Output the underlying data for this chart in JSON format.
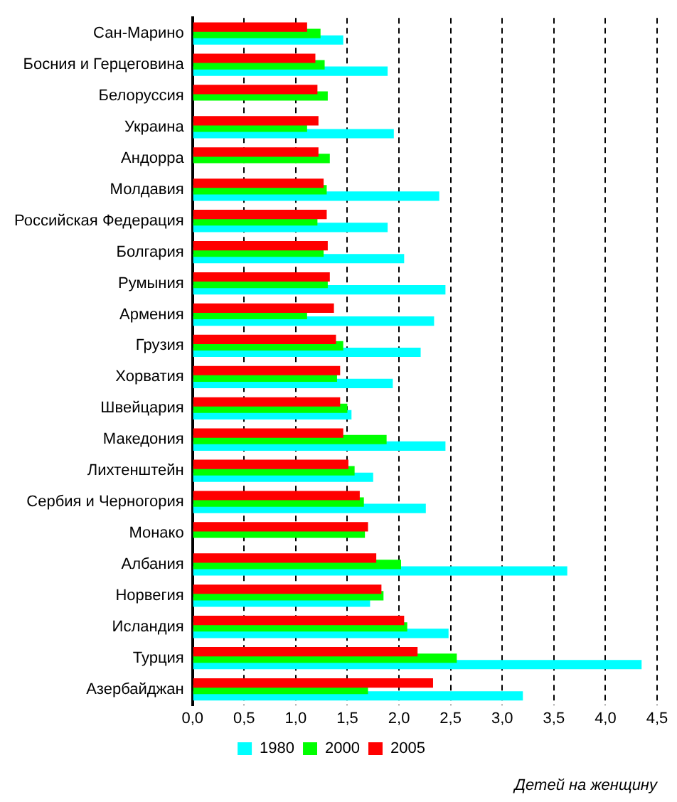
{
  "chart_data": {
    "type": "bar",
    "orientation": "horizontal",
    "xlabel": "Детей на женщину",
    "categories": [
      "Сан-Марино",
      "Босния и Герцеговина",
      "Белоруссия",
      "Украина",
      "Андорра",
      "Молдавия",
      "Российская Федерация",
      "Болгария",
      "Румыния",
      "Армения",
      "Грузия",
      "Хорватия",
      "Швейцария",
      "Македония",
      "Лихтенштейн",
      "Сербия и Черногория",
      "Монако",
      "Албания",
      "Норвегия",
      "Исландия",
      "Турция",
      "Азербайджан"
    ],
    "series": [
      {
        "name": "1980",
        "color": "#00ffff",
        "values": [
          1.46,
          1.89,
          null,
          1.95,
          null,
          2.39,
          1.89,
          2.05,
          2.45,
          2.34,
          2.21,
          1.94,
          1.54,
          2.45,
          1.75,
          2.26,
          null,
          3.63,
          1.72,
          2.48,
          4.35,
          3.2
        ]
      },
      {
        "name": "2000",
        "color": "#00ff00",
        "values": [
          1.24,
          1.28,
          1.31,
          1.11,
          1.33,
          1.3,
          1.21,
          1.27,
          1.31,
          1.11,
          1.46,
          1.4,
          1.5,
          1.88,
          1.57,
          1.66,
          1.67,
          2.02,
          1.85,
          2.08,
          2.56,
          1.7
        ]
      },
      {
        "name": "2005",
        "color": "#ff0000",
        "values": [
          1.11,
          1.19,
          1.21,
          1.22,
          1.22,
          1.27,
          1.3,
          1.31,
          1.33,
          1.37,
          1.39,
          1.43,
          1.43,
          1.46,
          1.51,
          1.62,
          1.7,
          1.78,
          1.83,
          2.05,
          2.18,
          2.33
        ]
      }
    ],
    "xlim": [
      0,
      4.5
    ],
    "xticks": [
      {
        "value": 0,
        "label": "0,0"
      },
      {
        "value": 0.5,
        "label": "0,5"
      },
      {
        "value": 1,
        "label": "1,0"
      },
      {
        "value": 1.5,
        "label": "1,5"
      },
      {
        "value": 2,
        "label": "2,0"
      },
      {
        "value": 2.5,
        "label": "2,5"
      },
      {
        "value": 3,
        "label": "3,0"
      },
      {
        "value": 3.5,
        "label": "3,5"
      },
      {
        "value": 4,
        "label": "4,0"
      },
      {
        "value": 4.5,
        "label": "4,5"
      }
    ],
    "grid": "x",
    "legend": "bottom"
  }
}
